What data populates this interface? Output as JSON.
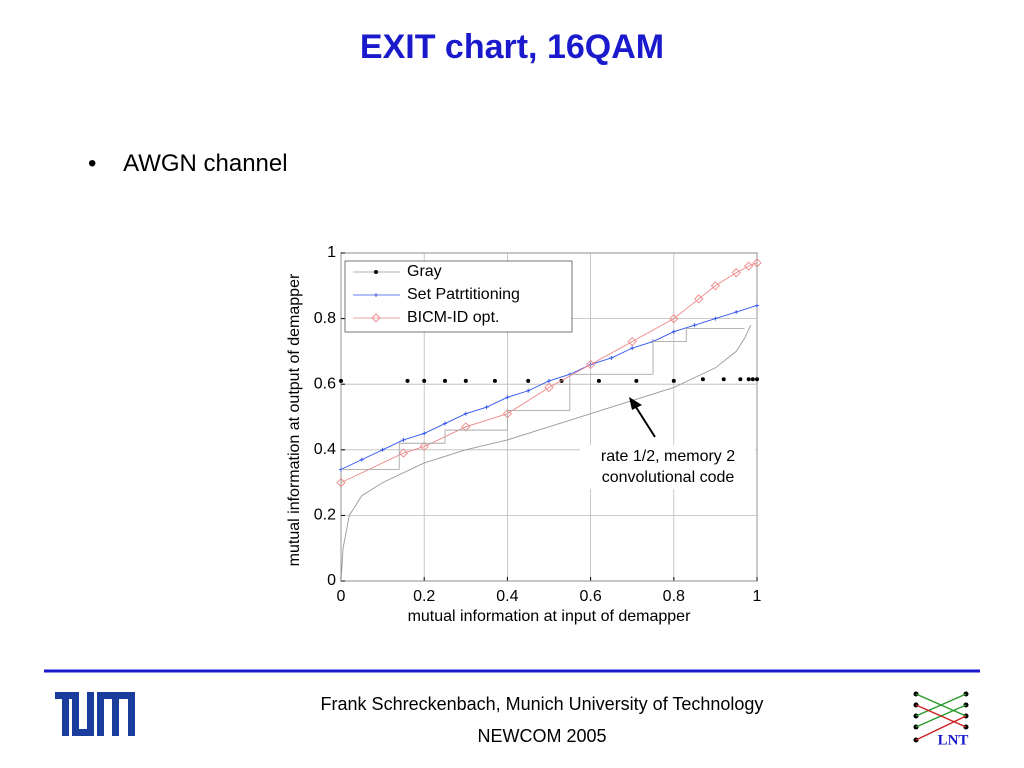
{
  "header": {
    "title": "EXIT chart, 16QAM"
  },
  "bullets": [
    "AWGN channel"
  ],
  "footer": {
    "author": "Frank Schreckenbach, Munich University of Technology",
    "event": "NEWCOM 2005",
    "logo_right": "LNT"
  },
  "chart_data": {
    "type": "line",
    "xlabel": "mutual information at input of demapper",
    "ylabel": "mutual information at output of demapper",
    "xlim": [
      0,
      1
    ],
    "ylim": [
      0,
      1
    ],
    "xticks": [
      0,
      0.2,
      0.4,
      0.6,
      0.8,
      1
    ],
    "yticks": [
      0,
      0.2,
      0.4,
      0.6,
      0.8,
      1
    ],
    "grid": true,
    "legend": "upper left",
    "annotation": [
      "rate 1/2, memory 2",
      "convolutional code"
    ],
    "series": [
      {
        "name": "Gray",
        "color": "#000000",
        "marker": "dot",
        "line": false,
        "x": [
          0,
          0.16,
          0.2,
          0.25,
          0.3,
          0.37,
          0.45,
          0.53,
          0.62,
          0.71,
          0.8,
          0.87,
          0.92,
          0.96,
          0.98,
          0.99,
          1.0
        ],
        "values": [
          0.61,
          0.61,
          0.61,
          0.61,
          0.61,
          0.61,
          0.61,
          0.61,
          0.61,
          0.61,
          0.61,
          0.615,
          0.615,
          0.615,
          0.615,
          0.615,
          0.615
        ]
      },
      {
        "name": "Set Patrtitioning",
        "color": "#3355ee",
        "marker": "plus",
        "line": true,
        "x": [
          0,
          0.05,
          0.1,
          0.15,
          0.2,
          0.25,
          0.3,
          0.35,
          0.4,
          0.45,
          0.5,
          0.55,
          0.6,
          0.65,
          0.7,
          0.75,
          0.8,
          0.85,
          0.9,
          0.95,
          1.0
        ],
        "values": [
          0.34,
          0.37,
          0.4,
          0.43,
          0.45,
          0.48,
          0.51,
          0.53,
          0.56,
          0.58,
          0.61,
          0.63,
          0.66,
          0.68,
          0.71,
          0.73,
          0.76,
          0.78,
          0.8,
          0.82,
          0.84
        ]
      },
      {
        "name": "BICM-ID opt.",
        "color": "#ee8888",
        "marker": "diamond",
        "line": true,
        "x": [
          0,
          0.15,
          0.2,
          0.3,
          0.4,
          0.5,
          0.6,
          0.7,
          0.8,
          0.86,
          0.9,
          0.95,
          0.98,
          1.0
        ],
        "values": [
          0.3,
          0.39,
          0.41,
          0.47,
          0.51,
          0.59,
          0.66,
          0.73,
          0.8,
          0.86,
          0.9,
          0.94,
          0.96,
          0.97
        ]
      },
      {
        "color": "#999999",
        "marker": "none",
        "line": true,
        "x": [
          0,
          0.005,
          0.02,
          0.05,
          0.1,
          0.2,
          0.3,
          0.4,
          0.5,
          0.6,
          0.7,
          0.8,
          0.85,
          0.9,
          0.95,
          0.97,
          0.985
        ],
        "values": [
          0.0,
          0.1,
          0.2,
          0.26,
          0.3,
          0.36,
          0.4,
          0.43,
          0.47,
          0.51,
          0.55,
          0.59,
          0.62,
          0.65,
          0.7,
          0.74,
          0.78
        ]
      },
      {
        "color": "#aaaaaa",
        "marker": "none",
        "line": true,
        "x": [
          0,
          0.14,
          0.14,
          0.25,
          0.25,
          0.4,
          0.4,
          0.55,
          0.55,
          0.75,
          0.75,
          0.83,
          0.83,
          0.97
        ],
        "values": [
          0.34,
          0.34,
          0.42,
          0.42,
          0.46,
          0.46,
          0.52,
          0.52,
          0.63,
          0.63,
          0.73,
          0.73,
          0.77,
          0.77
        ]
      }
    ]
  }
}
